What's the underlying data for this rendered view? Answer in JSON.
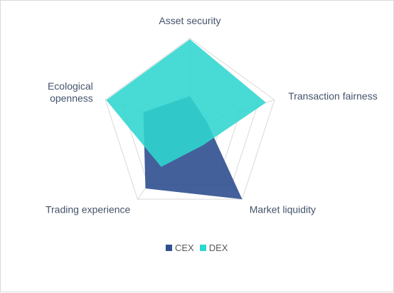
{
  "chart_data": {
    "type": "radar",
    "axes": [
      "Asset security",
      "Transaction fairness",
      "Market liquidity",
      "Trading experience",
      "Ecological openness"
    ],
    "axis_label_lines": [
      [
        "Asset security"
      ],
      [
        "Transaction fairness"
      ],
      [
        "Market liquidity"
      ],
      [
        "Trading experience"
      ],
      [
        "Ecological",
        "openness"
      ]
    ],
    "rmax": 1.0,
    "grid_levels": [
      0.2,
      0.4,
      0.6,
      0.8,
      1.0
    ],
    "legend_position": "bottom",
    "series": [
      {
        "name": "CEX",
        "color": "#2f4f8f",
        "opacity": 0.9,
        "values": [
          0.35,
          0.2,
          1.0,
          0.85,
          0.55
        ]
      },
      {
        "name": "DEX",
        "color": "#2fd6cf",
        "opacity": 0.88,
        "values": [
          0.99,
          0.9,
          0.25,
          0.55,
          0.99
        ]
      }
    ]
  }
}
